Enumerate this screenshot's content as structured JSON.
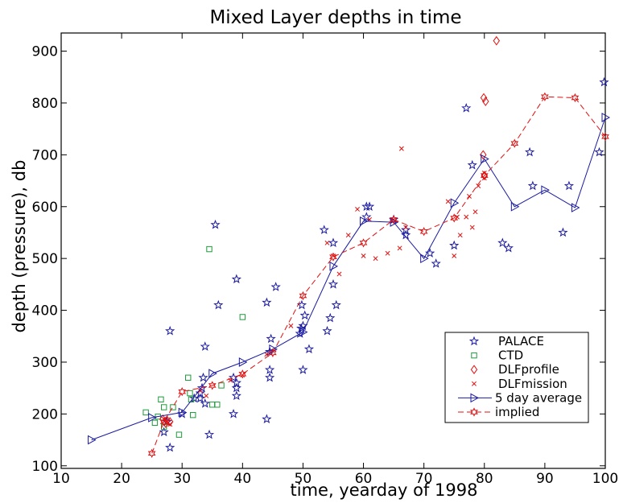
{
  "chart_data": {
    "type": "scatter",
    "title": "Mixed Layer depths in time",
    "xlabel": "time, yearday of 1998",
    "ylabel": "depth (pressure), db",
    "xlim": [
      10,
      100
    ],
    "ylim": [
      95,
      935
    ],
    "xticks": [
      10,
      20,
      30,
      40,
      50,
      60,
      70,
      80,
      90,
      100
    ],
    "yticks": [
      100,
      200,
      300,
      400,
      500,
      600,
      700,
      800,
      900
    ],
    "grid": false,
    "legend_position": "bottom-right",
    "colors": {
      "blue": "#1a1aa0",
      "green": "#1f9a3a",
      "red": "#e01010"
    },
    "series": [
      {
        "name": "PALACE",
        "marker": "star",
        "color": "#1a1aa0",
        "points": [
          [
            27,
            165
          ],
          [
            27.5,
            185
          ],
          [
            28,
            135
          ],
          [
            28,
            360
          ],
          [
            30,
            200
          ],
          [
            32,
            230
          ],
          [
            33,
            230
          ],
          [
            33,
            240
          ],
          [
            33.3,
            250
          ],
          [
            33.5,
            270
          ],
          [
            33.8,
            220
          ],
          [
            33.8,
            330
          ],
          [
            34.5,
            160
          ],
          [
            35.5,
            565
          ],
          [
            36,
            410
          ],
          [
            38.5,
            200
          ],
          [
            38.5,
            270
          ],
          [
            39,
            235
          ],
          [
            39,
            250
          ],
          [
            39,
            260
          ],
          [
            39,
            460
          ],
          [
            44,
            190
          ],
          [
            44,
            415
          ],
          [
            44.5,
            270
          ],
          [
            44.5,
            285
          ],
          [
            44.5,
            320
          ],
          [
            44.7,
            345
          ],
          [
            45.5,
            445
          ],
          [
            49.5,
            355
          ],
          [
            49.7,
            365
          ],
          [
            49.8,
            410
          ],
          [
            50,
            285
          ],
          [
            50,
            370
          ],
          [
            50.3,
            390
          ],
          [
            51,
            325
          ],
          [
            53.5,
            555
          ],
          [
            54,
            360
          ],
          [
            54.5,
            385
          ],
          [
            55,
            530
          ],
          [
            55,
            450
          ],
          [
            55.5,
            410
          ],
          [
            60.5,
            580
          ],
          [
            60.5,
            600
          ],
          [
            61,
            600
          ],
          [
            65,
            575
          ],
          [
            67,
            555
          ],
          [
            67,
            545
          ],
          [
            71,
            510
          ],
          [
            72,
            490
          ],
          [
            75,
            525
          ],
          [
            77,
            790
          ],
          [
            78,
            680
          ],
          [
            83,
            530
          ],
          [
            84,
            520
          ],
          [
            87.5,
            705
          ],
          [
            88,
            640
          ],
          [
            93,
            550
          ],
          [
            94,
            640
          ],
          [
            99,
            705
          ],
          [
            99.8,
            840
          ]
        ]
      },
      {
        "name": "CTD",
        "marker": "square",
        "color": "#1f9a3a",
        "points": [
          [
            24,
            203
          ],
          [
            25.5,
            183
          ],
          [
            26,
            195
          ],
          [
            26.5,
            228
          ],
          [
            27,
            175
          ],
          [
            27,
            213
          ],
          [
            28.5,
            213
          ],
          [
            29.5,
            160
          ],
          [
            31,
            270
          ],
          [
            31.3,
            240
          ],
          [
            31.5,
            228
          ],
          [
            31.8,
            198
          ],
          [
            34.5,
            518
          ],
          [
            35,
            218
          ],
          [
            35.8,
            218
          ],
          [
            36.5,
            255
          ],
          [
            40,
            387
          ]
        ]
      },
      {
        "name": "DLFprofile",
        "marker": "diamond",
        "color": "#e01010",
        "points": [
          [
            26.8,
            190
          ],
          [
            27.3,
            182
          ],
          [
            27.5,
            188
          ],
          [
            28,
            185
          ],
          [
            79.8,
            700
          ],
          [
            79.9,
            810
          ],
          [
            80,
            660
          ],
          [
            80.2,
            803
          ],
          [
            82,
            920
          ]
        ]
      },
      {
        "name": "DLFmission",
        "marker": "x",
        "color": "#e01010",
        "points": [
          [
            27,
            190
          ],
          [
            27.5,
            185
          ],
          [
            28,
            180
          ],
          [
            33,
            245
          ],
          [
            34,
            235
          ],
          [
            38,
            265
          ],
          [
            40,
            275
          ],
          [
            44,
            315
          ],
          [
            48,
            370
          ],
          [
            54,
            530
          ],
          [
            55,
            505
          ],
          [
            56,
            470
          ],
          [
            57.5,
            545
          ],
          [
            59,
            595
          ],
          [
            60,
            505
          ],
          [
            61,
            575
          ],
          [
            62,
            500
          ],
          [
            64,
            510
          ],
          [
            65,
            575
          ],
          [
            66,
            520
          ],
          [
            66.3,
            712
          ],
          [
            67,
            560
          ],
          [
            74,
            610
          ],
          [
            75,
            505
          ],
          [
            75.5,
            580
          ],
          [
            76,
            545
          ],
          [
            77,
            580
          ],
          [
            77.5,
            620
          ],
          [
            78,
            560
          ],
          [
            78.5,
            590
          ],
          [
            79,
            640
          ],
          [
            80,
            655
          ],
          [
            80,
            665
          ]
        ]
      },
      {
        "name": "5 day average",
        "marker": "triangle-right",
        "line": "solid",
        "color": "#1a1aa0",
        "points": [
          [
            15,
            150
          ],
          [
            25,
            193
          ],
          [
            30,
            203
          ],
          [
            35,
            278
          ],
          [
            40,
            300
          ],
          [
            45,
            325
          ],
          [
            50,
            358
          ],
          [
            55,
            485
          ],
          [
            60,
            572
          ],
          [
            65,
            570
          ],
          [
            70,
            500
          ],
          [
            75,
            607
          ],
          [
            80,
            692
          ],
          [
            85,
            600
          ],
          [
            90,
            632
          ],
          [
            95,
            598
          ],
          [
            100,
            772
          ]
        ]
      },
      {
        "name": "implied",
        "marker": "hex-star",
        "line": "dashed",
        "color": "#e01010",
        "points": [
          [
            25,
            124
          ],
          [
            27,
            185
          ],
          [
            30,
            243
          ],
          [
            35,
            255
          ],
          [
            40,
            277
          ],
          [
            45,
            318
          ],
          [
            50,
            428
          ],
          [
            55,
            503
          ],
          [
            60,
            530
          ],
          [
            65,
            575
          ],
          [
            70,
            552
          ],
          [
            75,
            578
          ],
          [
            80,
            660
          ],
          [
            85,
            722
          ],
          [
            90,
            812
          ],
          [
            95,
            810
          ],
          [
            100,
            735
          ]
        ]
      }
    ]
  }
}
